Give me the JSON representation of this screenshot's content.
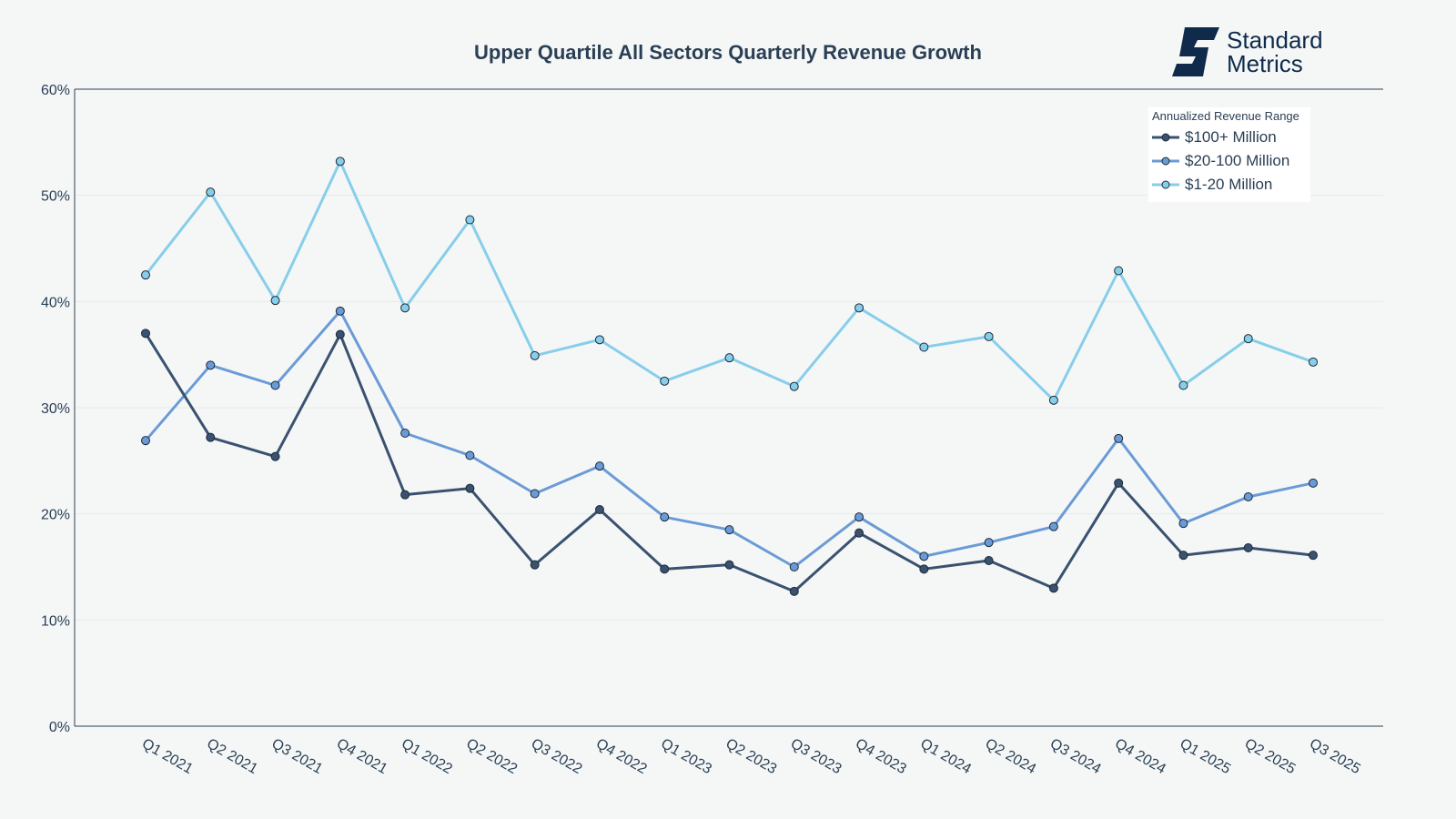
{
  "logo": {
    "line1": "Standard",
    "line2": "Metrics",
    "icon": "standard-metrics-logo-icon",
    "color": "#0f2a4a"
  },
  "chart_data": {
    "type": "line",
    "title": "Upper Quartile All Sectors Quarterly Revenue Growth",
    "xlabel": "",
    "ylabel": "",
    "ylim": [
      0,
      60
    ],
    "yticks": [
      0,
      10,
      20,
      30,
      40,
      50,
      60
    ],
    "ytick_labels": [
      "0%",
      "10%",
      "20%",
      "30%",
      "40%",
      "50%",
      "60%"
    ],
    "grid": true,
    "categories": [
      "Q1 2021",
      "Q2 2021",
      "Q3 2021",
      "Q4 2021",
      "Q1 2022",
      "Q2 2022",
      "Q3 2022",
      "Q4 2022",
      "Q1 2023",
      "Q2 2023",
      "Q3 2023",
      "Q4 2023",
      "Q1 2024",
      "Q2 2024",
      "Q3 2024",
      "Q4 2024",
      "Q1 2025",
      "Q2 2025",
      "Q3 2025"
    ],
    "legend": {
      "title": "Annualized Revenue Range",
      "placement": "top-right"
    },
    "series": [
      {
        "name": "$100+ Million",
        "color": "#3a5270",
        "values": [
          37.0,
          27.2,
          25.4,
          36.9,
          21.8,
          22.4,
          15.2,
          20.4,
          14.8,
          15.2,
          12.7,
          18.2,
          14.8,
          15.6,
          13.0,
          22.9,
          16.1,
          16.8,
          16.1
        ]
      },
      {
        "name": "$20-100 Million",
        "color": "#6b9bd6",
        "values": [
          26.9,
          34.0,
          32.1,
          39.1,
          27.6,
          25.5,
          21.9,
          24.5,
          19.7,
          18.5,
          15.0,
          19.7,
          16.0,
          17.3,
          18.8,
          27.1,
          19.1,
          21.6,
          22.9
        ]
      },
      {
        "name": "$1-20 Million",
        "color": "#87ceea",
        "values": [
          42.5,
          50.3,
          40.1,
          53.2,
          39.4,
          47.7,
          34.9,
          36.4,
          32.5,
          34.7,
          32.0,
          39.4,
          35.7,
          36.7,
          30.7,
          42.9,
          32.1,
          36.5,
          34.3
        ]
      }
    ]
  }
}
